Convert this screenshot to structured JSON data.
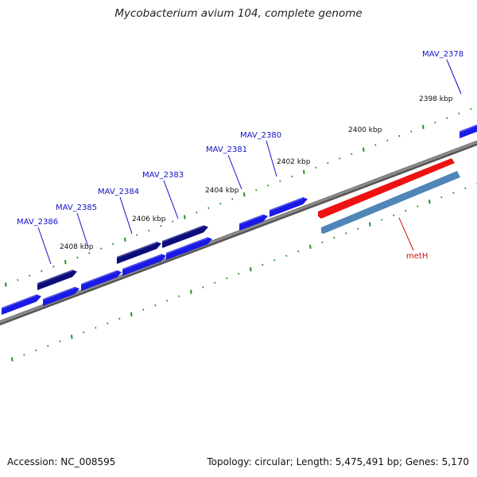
{
  "title": "Mycobacterium avium 104, complete genome",
  "footer": {
    "accession": "Accession: NC_008595",
    "summary": "Topology: circular; Length: 5,475,491 bp; Genes: 5,170"
  },
  "colors": {
    "backbone": "#808080",
    "tick": "#2a8a2a",
    "gene_forward": "#1a1ae6",
    "gene_forward_dark": "#0c0c7a",
    "gene_label": "#1010cc",
    "feature_red": "#ee1111",
    "feature_blue": "#4f86b8",
    "feature_label": "#cc1010"
  },
  "kbp_labels": [
    {
      "text": "2398 kbp"
    },
    {
      "text": "2400 kbp"
    },
    {
      "text": "2402 kbp"
    },
    {
      "text": "2404 kbp"
    },
    {
      "text": "2406 kbp"
    },
    {
      "text": "2408 kbp"
    }
  ],
  "gene_labels": [
    {
      "text": "MAV_2378"
    },
    {
      "text": "MAV_2380"
    },
    {
      "text": "MAV_2381"
    },
    {
      "text": "MAV_2383"
    },
    {
      "text": "MAV_2384"
    },
    {
      "text": "MAV_2385"
    },
    {
      "text": "MAV_2386"
    }
  ],
  "feature_label": {
    "text": "metH"
  }
}
